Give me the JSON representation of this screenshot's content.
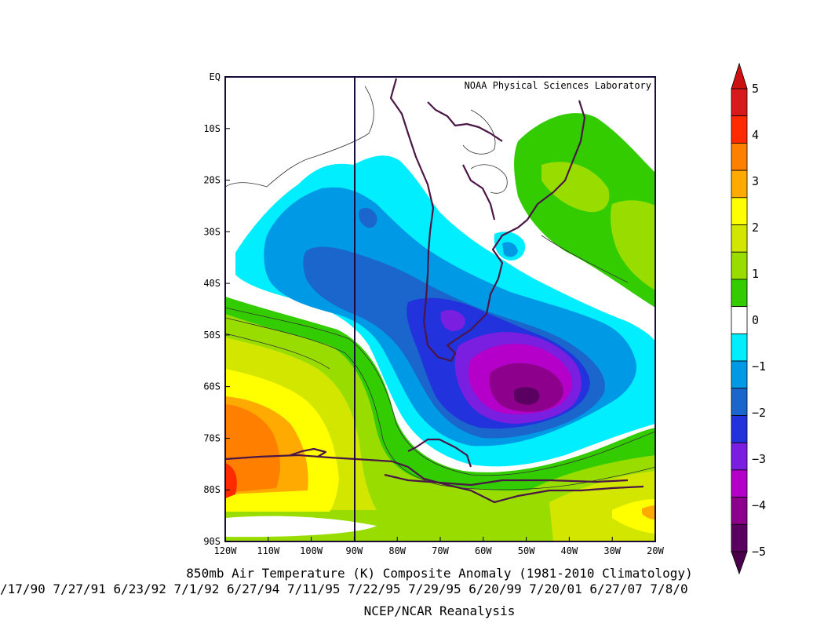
{
  "credit": "NOAA Physical Sciences Laboratory",
  "title": "850mb Air Temperature (K) Composite Anomaly (1981-2010 Climatology)",
  "dates_line": "/17/90 7/27/91 6/23/92 7/1/92 6/27/94 7/11/95 7/22/95 7/29/95 6/20/99 7/20/01 6/27/07 7/8/0",
  "source": "NCEP/NCAR Reanalysis",
  "map": {
    "lon_range": [
      -120,
      -20
    ],
    "lat_range": [
      -90,
      0
    ],
    "x_ticks": [
      "120W",
      "110W",
      "100W",
      "90W",
      "80W",
      "70W",
      "60W",
      "50W",
      "40W",
      "30W",
      "20W"
    ],
    "y_ticks": [
      "EQ",
      "10S",
      "20S",
      "30S",
      "40S",
      "50S",
      "60S",
      "70S",
      "80S",
      "90S"
    ],
    "reference_meridian": "90W"
  },
  "colorbar": {
    "levels": [
      "5",
      "4",
      "3",
      "2",
      "1",
      "0",
      "-1",
      "-2",
      "-3",
      "-4",
      "-5"
    ],
    "colors": [
      "#d7191c",
      "#ff2a00",
      "#ff8000",
      "#ffaa00",
      "#ffff00",
      "#d2e600",
      "#99dd00",
      "#33cc00",
      "#ffffff",
      "#00eeff",
      "#0099e6",
      "#1a66cc",
      "#2233dd",
      "#7a1ee0",
      "#b400c8",
      "#8c008c",
      "#5a0060"
    ],
    "top_arrow_color": "#cc1111",
    "bottom_arrow_color": "#4b004b"
  },
  "features": {
    "cold_core_min": "about -5 K near 62S 50W",
    "warm_core": "about +4 to +5 K near 78S 120W"
  }
}
